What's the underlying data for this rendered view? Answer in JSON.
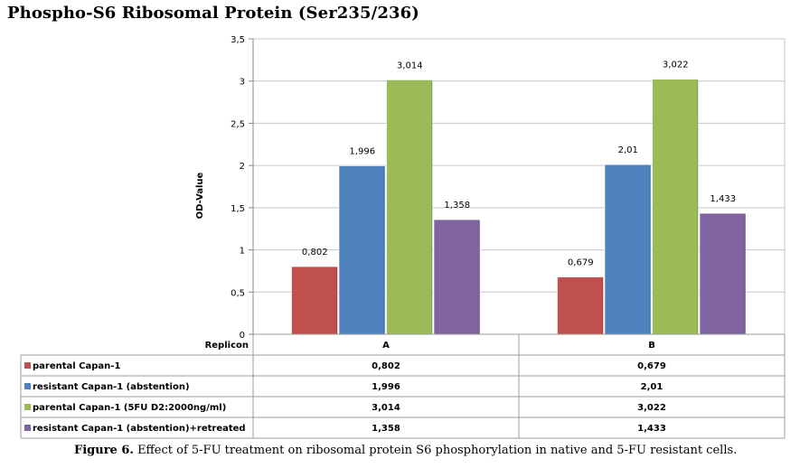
{
  "page_title": "Phospho-S6 Ribosomal Protein (Ser235/236)",
  "caption": {
    "label": "Figure 6.",
    "text": " Effect of 5-FU treatment on ribosomal protein S6 phosphorylation in native and 5-FU resistant cells."
  },
  "chart_data": {
    "type": "bar",
    "title": "Phospho-S6 Ribosomal Protein (Ser235/236)",
    "xlabel": "Replicon",
    "ylabel": "OD-Value",
    "ylim": [
      0,
      3.5
    ],
    "yticks": [
      "0",
      "0,5",
      "1",
      "1,5",
      "2",
      "2,5",
      "3",
      "3,5"
    ],
    "categories": [
      "A",
      "B"
    ],
    "grid": true,
    "series": [
      {
        "name": "parental Capan-1",
        "color": "#c0504d",
        "values": [
          0.802,
          0.679
        ],
        "labels": [
          "0,802",
          "0,679"
        ]
      },
      {
        "name": "resistant Capan-1 (abstention)",
        "color": "#4f81bd",
        "values": [
          1.996,
          2.01
        ],
        "labels": [
          "1,996",
          "2,01"
        ]
      },
      {
        "name": "parental Capan-1 (5FU D2:2000ng/ml)",
        "color": "#9bbb59",
        "values": [
          3.014,
          3.022
        ],
        "labels": [
          "3,014",
          "3,022"
        ]
      },
      {
        "name": "resistant Capan-1 (abstention)+retreated",
        "color": "#8064a2",
        "values": [
          1.358,
          1.433
        ],
        "labels": [
          "1,358",
          "1,433"
        ]
      }
    ]
  }
}
